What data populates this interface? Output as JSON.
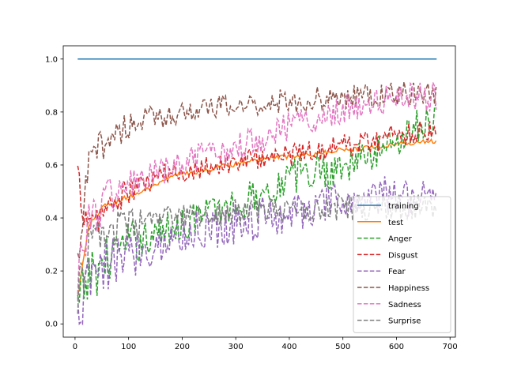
{
  "chart_data": {
    "type": "line",
    "title": "",
    "xlabel": "",
    "ylabel": "",
    "xlim": [
      -22,
      710
    ],
    "ylim": [
      -0.05,
      1.05
    ],
    "xticks": [
      0,
      100,
      200,
      300,
      400,
      500,
      600,
      700
    ],
    "yticks": [
      0.0,
      0.2,
      0.4,
      0.6,
      0.8,
      1.0
    ],
    "xtick_labels": [
      "0",
      "100",
      "200",
      "300",
      "400",
      "500",
      "600",
      "700"
    ],
    "ytick_labels": [
      "0.0",
      "0.2",
      "0.4",
      "0.6",
      "0.8",
      "1.0"
    ],
    "grid": false,
    "legend_position": "lower-right",
    "x_range": [
      5,
      675
    ],
    "series": [
      {
        "name": "training",
        "color": "#1f77b4",
        "style": "solid",
        "x": [
          5,
          675
        ],
        "values": [
          1.0,
          1.0
        ]
      },
      {
        "name": "test",
        "color": "#ff7f0e",
        "style": "solid",
        "x": [
          5,
          25,
          50,
          75,
          100,
          125,
          150,
          175,
          200,
          225,
          250,
          275,
          300,
          325,
          350,
          375,
          400,
          425,
          450,
          475,
          500,
          525,
          550,
          575,
          600,
          625,
          650,
          675
        ],
        "values": [
          0.1,
          0.36,
          0.44,
          0.46,
          0.48,
          0.5,
          0.52,
          0.55,
          0.57,
          0.57,
          0.58,
          0.6,
          0.6,
          0.62,
          0.62,
          0.63,
          0.63,
          0.64,
          0.64,
          0.65,
          0.66,
          0.66,
          0.67,
          0.67,
          0.68,
          0.68,
          0.69,
          0.69
        ]
      },
      {
        "name": "Anger",
        "color": "#2ca02c",
        "style": "dashed",
        "x": [
          5,
          25,
          50,
          75,
          100,
          125,
          150,
          175,
          200,
          225,
          250,
          275,
          300,
          325,
          350,
          375,
          400,
          425,
          450,
          475,
          500,
          525,
          550,
          575,
          600,
          625,
          650,
          675
        ],
        "values": [
          0.05,
          0.18,
          0.22,
          0.28,
          0.3,
          0.32,
          0.34,
          0.36,
          0.38,
          0.4,
          0.42,
          0.44,
          0.45,
          0.47,
          0.5,
          0.52,
          0.55,
          0.57,
          0.58,
          0.58,
          0.6,
          0.62,
          0.63,
          0.66,
          0.7,
          0.73,
          0.76,
          0.78
        ]
      },
      {
        "name": "Disgust",
        "color": "#d62728",
        "style": "dashed",
        "x": [
          5,
          25,
          50,
          75,
          100,
          125,
          150,
          175,
          200,
          225,
          250,
          275,
          300,
          325,
          350,
          375,
          400,
          425,
          450,
          475,
          500,
          525,
          550,
          575,
          600,
          625,
          650,
          675
        ],
        "values": [
          0.55,
          0.35,
          0.42,
          0.46,
          0.5,
          0.52,
          0.55,
          0.57,
          0.57,
          0.59,
          0.6,
          0.6,
          0.61,
          0.62,
          0.63,
          0.63,
          0.64,
          0.65,
          0.66,
          0.66,
          0.68,
          0.68,
          0.69,
          0.7,
          0.72,
          0.72,
          0.73,
          0.74
        ]
      },
      {
        "name": "Fear",
        "color": "#9467bd",
        "style": "dashed",
        "x": [
          5,
          25,
          50,
          75,
          100,
          125,
          150,
          175,
          200,
          225,
          250,
          275,
          300,
          325,
          350,
          375,
          400,
          425,
          450,
          475,
          500,
          525,
          550,
          575,
          600,
          625,
          650,
          675
        ],
        "values": [
          0.0,
          0.15,
          0.2,
          0.24,
          0.26,
          0.28,
          0.3,
          0.32,
          0.33,
          0.35,
          0.36,
          0.37,
          0.38,
          0.39,
          0.4,
          0.41,
          0.42,
          0.43,
          0.44,
          0.45,
          0.46,
          0.46,
          0.47,
          0.48,
          0.48,
          0.49,
          0.5,
          0.5
        ]
      },
      {
        "name": "Happiness",
        "color": "#8c564b",
        "style": "dashed",
        "x": [
          5,
          25,
          50,
          75,
          100,
          125,
          150,
          175,
          200,
          225,
          250,
          275,
          300,
          325,
          350,
          375,
          400,
          425,
          450,
          475,
          500,
          525,
          550,
          575,
          600,
          625,
          650,
          675
        ],
        "values": [
          0.2,
          0.6,
          0.68,
          0.72,
          0.75,
          0.77,
          0.78,
          0.79,
          0.8,
          0.81,
          0.81,
          0.82,
          0.82,
          0.83,
          0.83,
          0.84,
          0.84,
          0.84,
          0.85,
          0.85,
          0.85,
          0.86,
          0.86,
          0.86,
          0.87,
          0.87,
          0.87,
          0.87
        ]
      },
      {
        "name": "Sadness",
        "color": "#e377c2",
        "style": "dashed",
        "x": [
          5,
          25,
          50,
          75,
          100,
          125,
          150,
          175,
          200,
          225,
          250,
          275,
          300,
          325,
          350,
          375,
          400,
          425,
          450,
          475,
          500,
          525,
          550,
          575,
          600,
          625,
          650,
          675
        ],
        "values": [
          0.2,
          0.38,
          0.45,
          0.5,
          0.52,
          0.54,
          0.56,
          0.58,
          0.6,
          0.62,
          0.63,
          0.65,
          0.67,
          0.69,
          0.71,
          0.73,
          0.75,
          0.76,
          0.78,
          0.8,
          0.81,
          0.82,
          0.83,
          0.84,
          0.85,
          0.85,
          0.86,
          0.86
        ]
      },
      {
        "name": "Surprise",
        "color": "#7f7f7f",
        "style": "dashed",
        "x": [
          5,
          25,
          50,
          75,
          100,
          125,
          150,
          175,
          200,
          225,
          250,
          275,
          300,
          325,
          350,
          375,
          400,
          425,
          450,
          475,
          500,
          525,
          550,
          575,
          600,
          625,
          650,
          675
        ],
        "values": [
          0.1,
          0.3,
          0.34,
          0.36,
          0.37,
          0.38,
          0.39,
          0.4,
          0.4,
          0.41,
          0.41,
          0.42,
          0.42,
          0.42,
          0.43,
          0.43,
          0.43,
          0.43,
          0.44,
          0.44,
          0.44,
          0.44,
          0.44,
          0.44,
          0.44,
          0.44,
          0.44,
          0.44
        ]
      }
    ]
  }
}
